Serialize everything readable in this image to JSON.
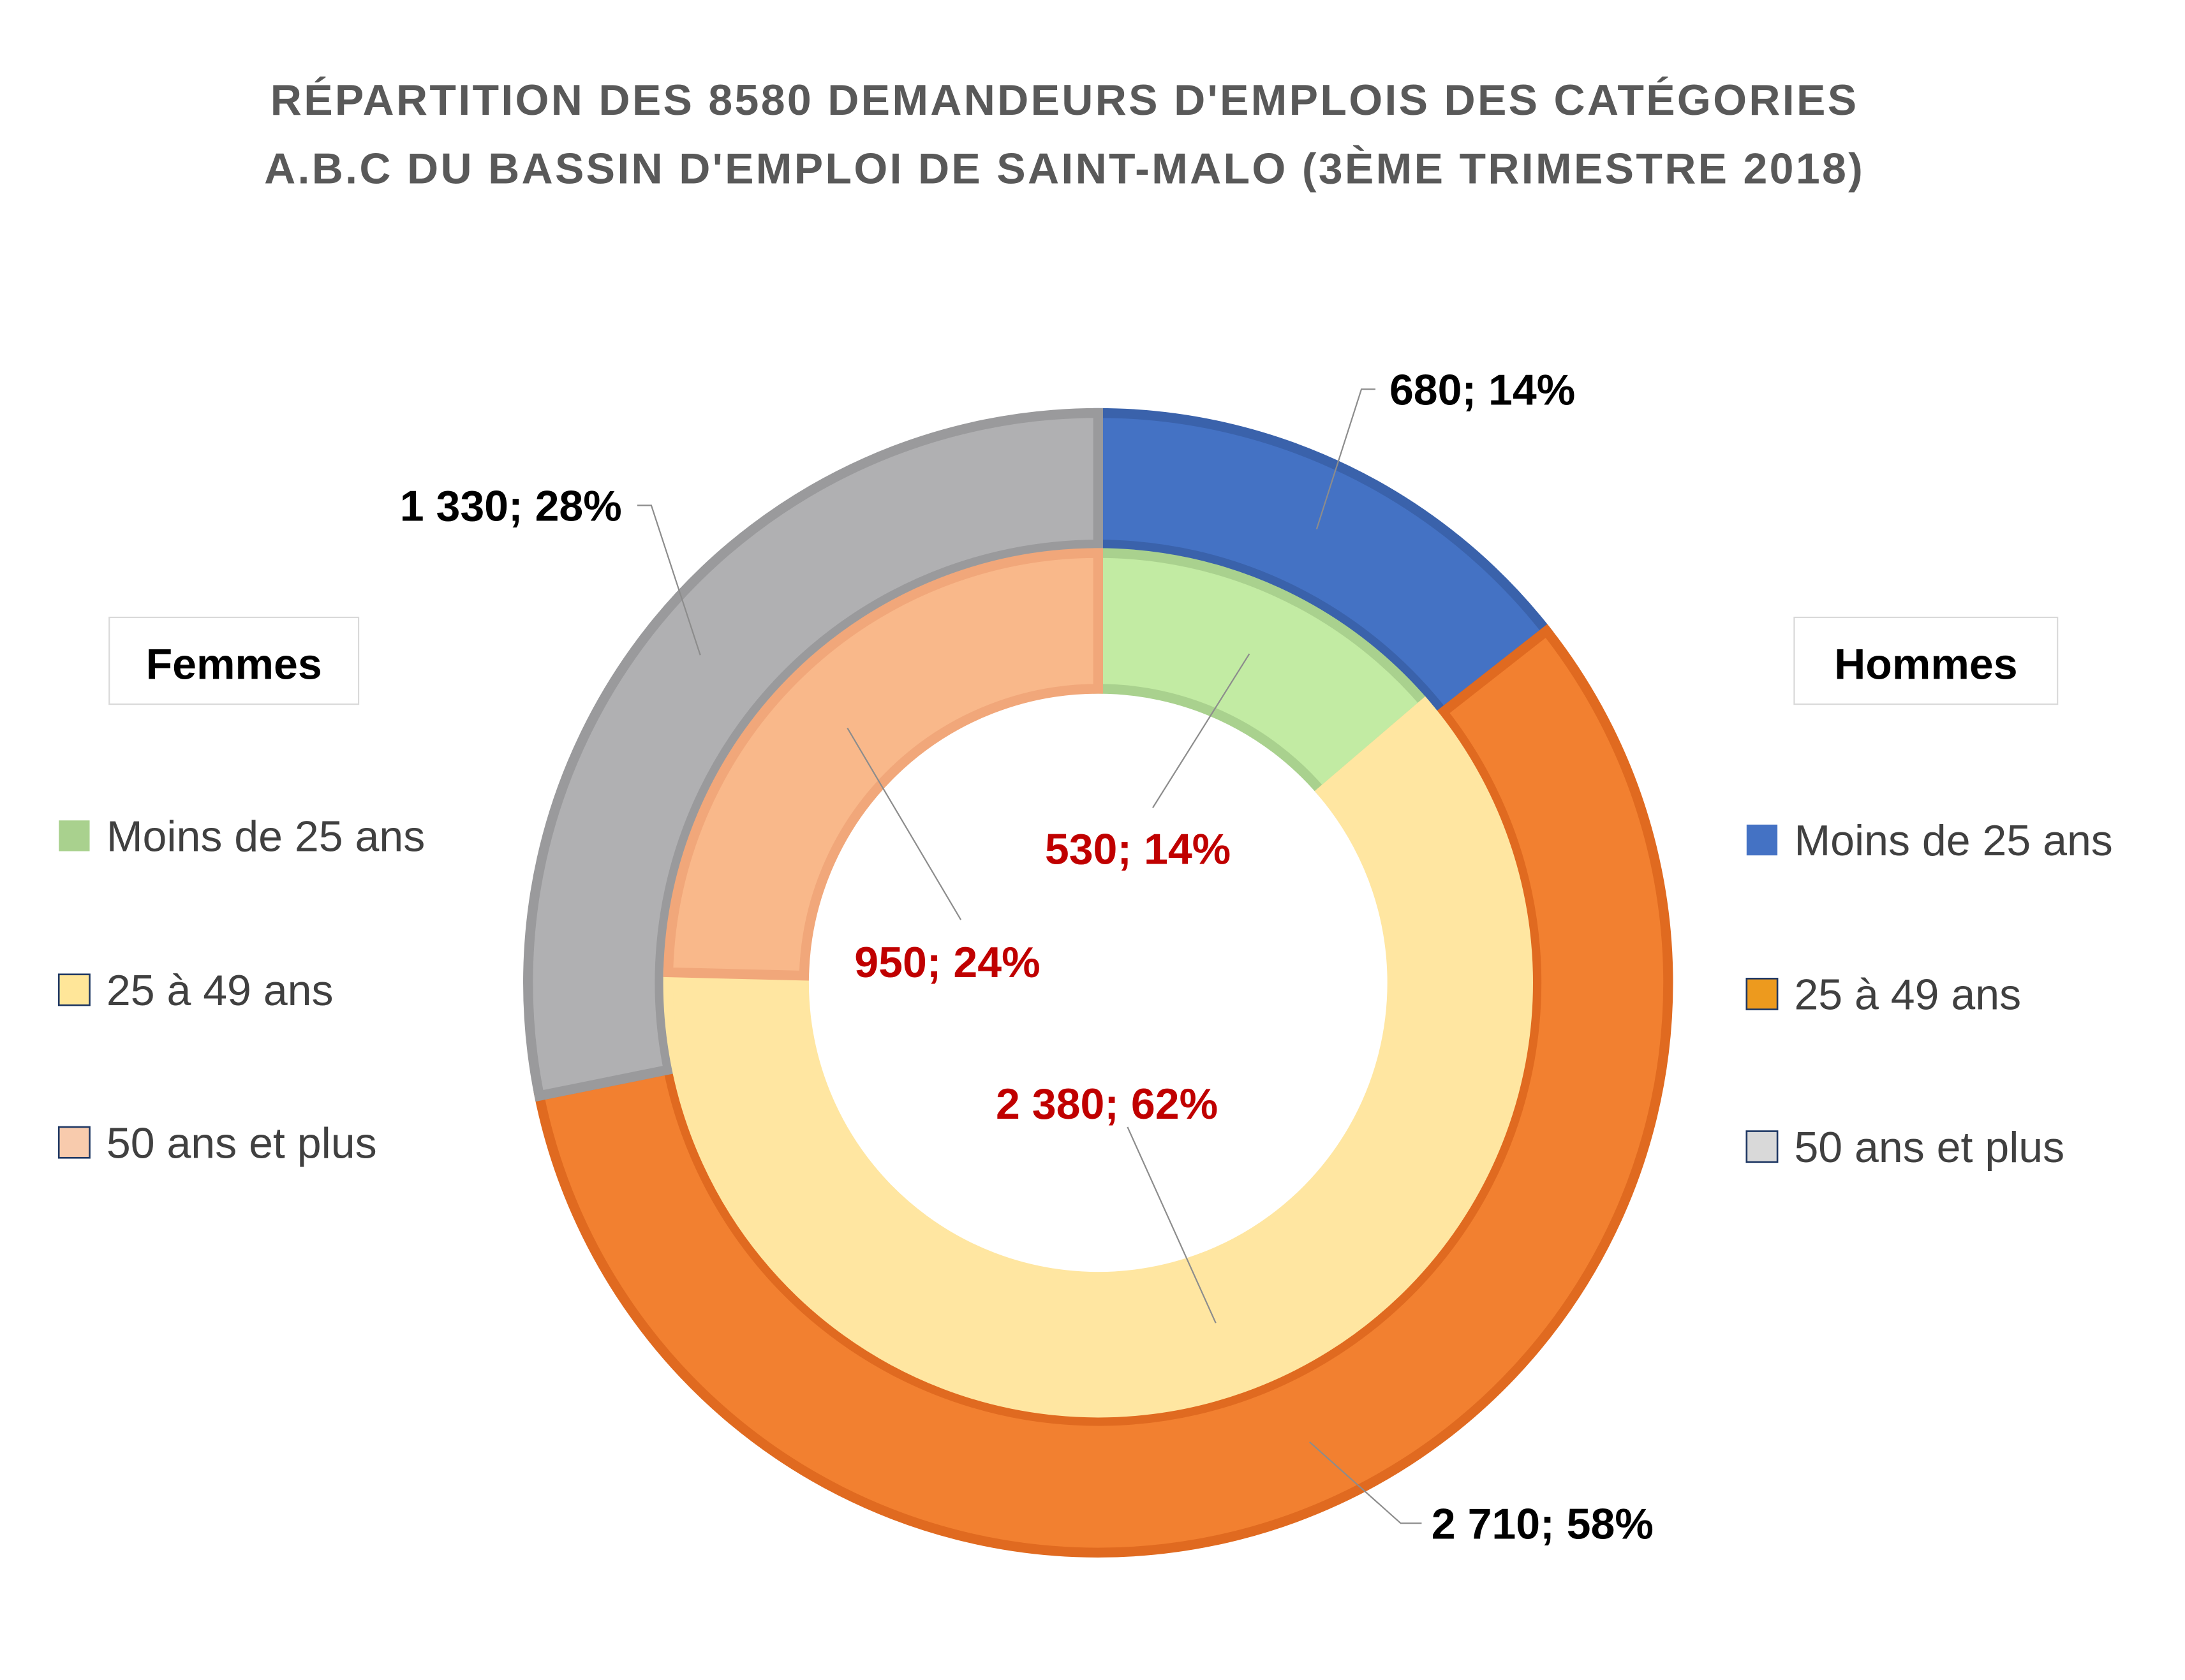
{
  "chart_data": {
    "type": "pie",
    "subtype": "doughnut",
    "title_lines": [
      "RÉPARTITION DES 8580 DEMANDEURS D'EMPLOIS DES CATÉGORIES",
      "A.B.C DU BASSIN D'EMPLOI DE SAINT-MALO (3ÈME TRIMESTRE 2018)"
    ],
    "categories": [
      "Moins de 25 ans",
      "25 à 49 ans",
      "50 ans et plus"
    ],
    "series": [
      {
        "name": "Hommes",
        "ring": "outer",
        "values": [
          680,
          2710,
          1330
        ],
        "percents": [
          14,
          58,
          28
        ],
        "labels": [
          "680; 14%",
          "2 710; 58%",
          "1 330; 28%"
        ],
        "colors": [
          "#4472C4",
          "#F28030",
          "#B0B0B2"
        ],
        "border_colors": [
          "#3A62AB",
          "#E06A20",
          "#9A9A9C"
        ],
        "legend_colors": [
          "#4472C4",
          "#ED9A1E",
          "#D9D9D9"
        ]
      },
      {
        "name": "Femmes",
        "ring": "inner",
        "values": [
          530,
          2380,
          950
        ],
        "percents": [
          14,
          62,
          24
        ],
        "labels": [
          "530; 14%",
          "2 380; 62%",
          "950; 24%"
        ],
        "colors": [
          "#C2EBA3",
          "#FFE6A1",
          "#F9B88A"
        ],
        "border_colors": [
          "#A9D18E",
          "#FFE6A1",
          "#F1A77A"
        ],
        "legend_colors": [
          "#A9D18E",
          "#FFE699",
          "#F8CBAD"
        ]
      }
    ],
    "legend": {
      "femmes_title": "Femmes",
      "hommes_title": "Hommes",
      "placement": "left (Femmes) and right (Hommes)"
    }
  }
}
